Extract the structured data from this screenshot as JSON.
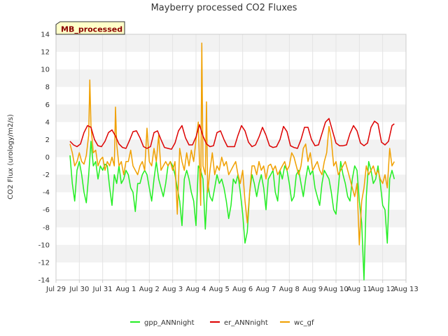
{
  "chart_data": {
    "type": "line",
    "title": "Mayberry processed CO2 Fluxes",
    "badge": "MB_processed",
    "ylabel": "CO2 Flux (urology/m2/s)",
    "xlabel": "",
    "ylim": [
      -14,
      14
    ],
    "y_ticks": [
      -14,
      -12,
      -10,
      -8,
      -6,
      -4,
      -2,
      0,
      2,
      4,
      6,
      8,
      10,
      12,
      14
    ],
    "xlim": [
      0,
      15
    ],
    "x_ticks": [
      "Jul 29",
      "Jul 30",
      "Jul 31",
      "Aug 1",
      "Aug 2",
      "Aug 3",
      "Aug 4",
      "Aug 5",
      "Aug 6",
      "Aug 7",
      "Aug 8",
      "Aug 9",
      "Aug 10",
      "Aug 11",
      "Aug 12",
      "Aug 13"
    ],
    "x_units": "days since Jul 29 00:00",
    "grid": true,
    "legend_position": "bottom",
    "series": [
      {
        "name": "gpp_ANNnight",
        "color": "#22ee22",
        "x": [
          0.6,
          0.7,
          0.8,
          0.9,
          1.0,
          1.1,
          1.2,
          1.3,
          1.4,
          1.5,
          1.6,
          1.7,
          1.8,
          1.9,
          2.0,
          2.1,
          2.2,
          2.3,
          2.4,
          2.5,
          2.6,
          2.7,
          2.8,
          2.9,
          3.0,
          3.1,
          3.2,
          3.3,
          3.4,
          3.5,
          3.6,
          3.7,
          3.8,
          3.9,
          4.0,
          4.1,
          4.2,
          4.3,
          4.4,
          4.5,
          4.6,
          4.7,
          4.8,
          4.9,
          5.0,
          5.1,
          5.2,
          5.3,
          5.4,
          5.5,
          5.6,
          5.7,
          5.8,
          5.9,
          6.0,
          6.1,
          6.2,
          6.3,
          6.4,
          6.5,
          6.6,
          6.7,
          6.8,
          6.9,
          7.0,
          7.1,
          7.2,
          7.3,
          7.4,
          7.5,
          7.6,
          7.7,
          7.8,
          7.9,
          8.0,
          8.1,
          8.2,
          8.3,
          8.4,
          8.5,
          8.6,
          8.7,
          8.8,
          8.9,
          9.0,
          9.1,
          9.2,
          9.3,
          9.4,
          9.5,
          9.6,
          9.7,
          9.8,
          9.9,
          10.0,
          10.1,
          10.2,
          10.3,
          10.4,
          10.5,
          10.6,
          10.7,
          10.8,
          10.9,
          11.0,
          11.1,
          11.2,
          11.3,
          11.4,
          11.5,
          11.6,
          11.7,
          11.8,
          11.9,
          12.0,
          12.1,
          12.2,
          12.3,
          12.4,
          12.5,
          12.6,
          12.7,
          12.8,
          12.9,
          13.0,
          13.1,
          13.2,
          13.3,
          13.4,
          13.5,
          13.6,
          13.7,
          13.8,
          13.9,
          14.0,
          14.1,
          14.2,
          14.3,
          14.4,
          14.5
        ],
        "values": [
          0.2,
          -3.0,
          -5.0,
          -1.5,
          -0.5,
          -2.0,
          -4.0,
          -5.2,
          -2.0,
          1.8,
          -1.0,
          -0.5,
          -2.5,
          -1.0,
          -1.5,
          -0.8,
          -1.0,
          -3.5,
          -5.5,
          -2.0,
          -3.0,
          -1.0,
          -3.0,
          -2.5,
          -1.5,
          -2.0,
          -3.5,
          -4.0,
          -6.2,
          -3.0,
          -3.0,
          -2.0,
          -1.5,
          -2.0,
          -3.5,
          -5.0,
          -2.5,
          -0.5,
          -2.5,
          -3.5,
          -4.5,
          -3.0,
          -1.0,
          -0.5,
          -1.0,
          -2.0,
          -3.5,
          -5.0,
          -7.8,
          -2.5,
          -1.5,
          -2.5,
          -4.0,
          -5.0,
          -7.8,
          -1.0,
          -1.5,
          -2.5,
          -8.2,
          -3.0,
          -4.5,
          -5.0,
          -3.5,
          -2.0,
          -3.0,
          -2.5,
          -3.5,
          -5.0,
          -7.0,
          -5.5,
          -2.5,
          -3.0,
          -2.0,
          -4.0,
          -6.5,
          -9.8,
          -8.5,
          -4.0,
          -2.0,
          -3.0,
          -4.5,
          -3.0,
          -2.0,
          -3.5,
          -6.0,
          -2.5,
          -2.0,
          -1.5,
          -4.0,
          -5.0,
          -1.5,
          -2.5,
          -1.0,
          -1.5,
          -3.0,
          -5.0,
          -4.5,
          -2.0,
          -1.5,
          -3.0,
          -4.5,
          -2.5,
          -1.0,
          -2.0,
          -1.5,
          -3.5,
          -4.5,
          -5.5,
          -3.0,
          -1.5,
          -2.0,
          -2.5,
          -4.0,
          -6.0,
          -6.5,
          -3.5,
          -0.5,
          -2.0,
          -3.0,
          -4.5,
          -5.0,
          -2.5,
          -1.0,
          -1.5,
          -5.0,
          -7.5,
          -14.0,
          -4.5,
          -0.5,
          -1.5,
          -3.0,
          -2.5,
          -1.0,
          -3.0,
          -5.5,
          -6.0,
          -9.8,
          -2.5,
          -1.5,
          -2.5
        ]
      },
      {
        "name": "er_ANNnight",
        "color": "#dd0000",
        "x": [
          0.6,
          0.75,
          0.9,
          1.05,
          1.2,
          1.35,
          1.5,
          1.65,
          1.8,
          1.95,
          2.1,
          2.25,
          2.4,
          2.55,
          2.7,
          2.85,
          3.0,
          3.15,
          3.3,
          3.45,
          3.6,
          3.75,
          3.9,
          4.05,
          4.2,
          4.35,
          4.5,
          4.65,
          4.8,
          4.95,
          5.1,
          5.25,
          5.4,
          5.55,
          5.7,
          5.85,
          6.0,
          6.15,
          6.3,
          6.45,
          6.6,
          6.75,
          6.9,
          7.05,
          7.2,
          7.35,
          7.5,
          7.65,
          7.8,
          7.95,
          8.1,
          8.25,
          8.4,
          8.55,
          8.7,
          8.85,
          9.0,
          9.15,
          9.3,
          9.45,
          9.6,
          9.75,
          9.9,
          10.05,
          10.2,
          10.35,
          10.5,
          10.65,
          10.8,
          10.95,
          11.1,
          11.25,
          11.4,
          11.55,
          11.7,
          11.85,
          12.0,
          12.15,
          12.3,
          12.45,
          12.6,
          12.75,
          12.9,
          13.05,
          13.2,
          13.35,
          13.5,
          13.65,
          13.8,
          13.95,
          14.1,
          14.25,
          14.4,
          14.5
        ],
        "values": [
          1.8,
          1.4,
          1.2,
          1.5,
          2.8,
          3.6,
          3.4,
          2.0,
          1.3,
          1.2,
          1.8,
          2.8,
          3.1,
          2.4,
          1.5,
          1.1,
          1.0,
          1.9,
          2.9,
          3.0,
          2.2,
          1.2,
          1.0,
          1.2,
          2.8,
          3.0,
          2.0,
          1.1,
          1.0,
          0.9,
          1.6,
          3.0,
          3.6,
          2.2,
          1.4,
          1.4,
          2.3,
          3.7,
          2.4,
          1.5,
          1.2,
          1.3,
          2.8,
          3.0,
          2.0,
          1.2,
          1.2,
          1.2,
          2.5,
          3.6,
          3.0,
          1.7,
          1.2,
          1.4,
          2.3,
          3.4,
          2.5,
          1.3,
          1.1,
          1.2,
          2.0,
          3.5,
          2.9,
          1.3,
          1.1,
          1.0,
          2.0,
          3.4,
          3.4,
          2.0,
          1.3,
          1.4,
          2.7,
          4.0,
          4.4,
          3.0,
          1.6,
          1.3,
          1.3,
          1.4,
          2.7,
          3.6,
          3.0,
          1.6,
          1.3,
          1.6,
          3.4,
          4.1,
          3.8,
          1.7,
          1.4,
          1.8,
          3.6,
          3.8
        ]
      },
      {
        "name": "wc_gf",
        "color": "#f0a000",
        "x": [
          0.6,
          0.7,
          0.8,
          0.9,
          1.0,
          1.1,
          1.2,
          1.3,
          1.4,
          1.45,
          1.5,
          1.6,
          1.7,
          1.8,
          1.9,
          2.0,
          2.1,
          2.2,
          2.3,
          2.4,
          2.5,
          2.55,
          2.6,
          2.7,
          2.8,
          2.9,
          3.0,
          3.1,
          3.2,
          3.3,
          3.4,
          3.5,
          3.6,
          3.7,
          3.8,
          3.9,
          4.0,
          4.1,
          4.2,
          4.3,
          4.4,
          4.5,
          4.6,
          4.7,
          4.8,
          4.9,
          5.0,
          5.1,
          5.2,
          5.3,
          5.4,
          5.5,
          5.6,
          5.7,
          5.8,
          5.9,
          6.0,
          6.1,
          6.2,
          6.25,
          6.3,
          6.4,
          6.45,
          6.5,
          6.6,
          6.7,
          6.8,
          6.9,
          7.0,
          7.1,
          7.2,
          7.3,
          7.4,
          7.5,
          7.6,
          7.7,
          7.8,
          7.9,
          8.0,
          8.1,
          8.2,
          8.3,
          8.4,
          8.5,
          8.6,
          8.7,
          8.8,
          8.9,
          9.0,
          9.1,
          9.2,
          9.3,
          9.4,
          9.5,
          9.6,
          9.7,
          9.8,
          9.9,
          10.0,
          10.1,
          10.2,
          10.3,
          10.4,
          10.5,
          10.6,
          10.7,
          10.8,
          10.9,
          11.0,
          11.1,
          11.2,
          11.3,
          11.4,
          11.5,
          11.6,
          11.7,
          11.8,
          11.9,
          12.0,
          12.1,
          12.2,
          12.3,
          12.4,
          12.5,
          12.6,
          12.7,
          12.8,
          12.9,
          13.0,
          13.1,
          13.2,
          13.3,
          13.4,
          13.5,
          13.6,
          13.7,
          13.8,
          13.9,
          14.0,
          14.1,
          14.2,
          14.3,
          14.4,
          14.5
        ],
        "values": [
          1.5,
          0.5,
          -1.0,
          -0.5,
          0.5,
          -0.5,
          -0.8,
          0.2,
          2.5,
          8.8,
          3.5,
          0.5,
          0.8,
          -1.0,
          -0.3,
          0.0,
          -1.5,
          -0.5,
          -1.0,
          0.0,
          -1.0,
          5.7,
          1.5,
          -1.0,
          -0.5,
          -2.0,
          -0.5,
          -0.5,
          0.8,
          -1.0,
          -1.5,
          -2.0,
          -1.0,
          -0.5,
          -1.5,
          3.3,
          -0.5,
          -1.0,
          1.0,
          -0.5,
          2.5,
          -1.5,
          -1.0,
          -0.5,
          -1.0,
          -0.5,
          -1.5,
          -0.5,
          -6.5,
          1.0,
          -0.5,
          -1.5,
          0.5,
          -1.0,
          0.8,
          -0.5,
          2.0,
          4.0,
          -5.5,
          13.0,
          -1.0,
          -2.0,
          6.3,
          -4.0,
          -1.5,
          0.5,
          -2.0,
          -1.0,
          -1.5,
          0.0,
          -1.0,
          -0.5,
          -2.0,
          -1.5,
          -1.0,
          -0.5,
          -2.0,
          -3.0,
          -1.5,
          -5.0,
          -7.5,
          -4.0,
          -1.0,
          -1.0,
          -2.0,
          -0.5,
          -1.5,
          -1.0,
          -2.5,
          -1.0,
          -0.8,
          -1.5,
          -1.0,
          -2.0,
          -1.5,
          -1.0,
          -0.5,
          -1.5,
          -1.0,
          0.5,
          0.0,
          -1.0,
          -2.0,
          -1.0,
          1.0,
          1.5,
          -0.5,
          0.5,
          -1.5,
          -1.0,
          -0.5,
          -1.5,
          -2.0,
          -0.5,
          0.5,
          3.5,
          2.0,
          -1.0,
          -0.5,
          -2.0,
          -1.5,
          -1.0,
          -0.5,
          -1.5,
          -2.5,
          -3.5,
          -4.5,
          -3.0,
          -10.0,
          -5.0,
          -3.5,
          -1.0,
          -2.0,
          -1.5,
          -1.0,
          -2.0,
          -1.5,
          -2.5,
          -3.0,
          -2.0,
          -3.5,
          1.0,
          -1.0,
          -0.5
        ]
      }
    ]
  }
}
